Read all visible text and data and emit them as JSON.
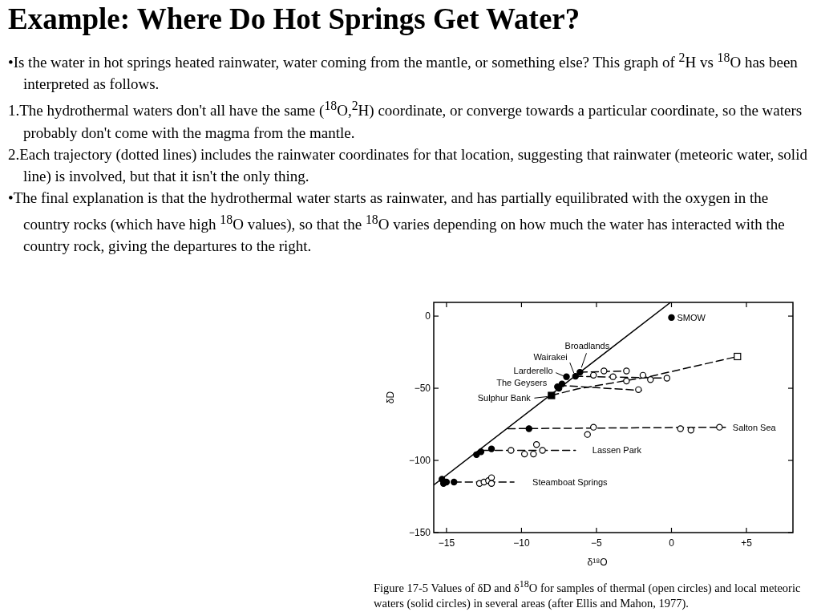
{
  "chart_data": {
    "type": "scatter",
    "title": "Example: Where Do Hot Springs Get Water?",
    "xlabel": "δ¹⁸O",
    "ylabel": "δD",
    "xlim": [
      -15.85,
      8.1
    ],
    "ylim": [
      -150,
      9.5
    ],
    "xticks": [
      -15,
      -10,
      -5,
      0,
      {
        "value": 5,
        "label": "+5"
      }
    ],
    "yticks": [
      0,
      -50,
      -100,
      -150
    ],
    "grid": false,
    "series": [
      {
        "type": "line",
        "line_style": "solid",
        "color": "#000000",
        "x": [
          -15.85,
          -0.06
        ],
        "values": [
          -117,
          9.5
        ]
      },
      {
        "type": "line",
        "line_style": "dashed",
        "color": "#000000",
        "x": [
          -6.1,
          -2.9
        ],
        "values": [
          -38.9,
          -38
        ]
      },
      {
        "type": "line",
        "line_style": "dashed",
        "color": "#000000",
        "x": [
          -6.4,
          -0.3
        ],
        "values": [
          -41.7,
          -43
        ]
      },
      {
        "type": "line",
        "line_style": "dashed",
        "color": "#000000",
        "x": [
          -7.5,
          -2.0
        ],
        "values": [
          -48,
          -51.5
        ]
      },
      {
        "type": "line",
        "line_style": "dashed",
        "color": "#000000",
        "x": [
          -8,
          -6.3,
          -1.5,
          4.4
        ],
        "values": [
          -55,
          -50.5,
          -42,
          -28
        ]
      },
      {
        "type": "line",
        "line_style": "dashed",
        "color": "#000000",
        "x": [
          -10.9,
          3.6
        ],
        "values": [
          -78,
          -77
        ]
      },
      {
        "type": "line",
        "line_style": "dashed",
        "color": "#000000",
        "x": [
          -12.5,
          -6.4
        ],
        "values": [
          -93,
          -93
        ]
      },
      {
        "type": "line",
        "line_style": "dashed",
        "color": "#000000",
        "x": [
          -14.5,
          -10.5
        ],
        "values": [
          -115,
          -115
        ]
      },
      {
        "marker": "circle",
        "color": "#000000",
        "x": [
          0,
          -6.1,
          -6.4,
          -7.0,
          -7.5,
          -7.3,
          -7.6,
          -9.5,
          -13.0,
          -12.7,
          -12.0,
          -15.3,
          -15.0,
          -14.5,
          -15.2
        ],
        "values": [
          -1,
          -38.9,
          -41.7,
          -42,
          -50,
          -47,
          -49,
          -78,
          -96,
          -94,
          -92,
          -113,
          -115,
          -115,
          -116
        ]
      },
      {
        "marker": "square",
        "color": "#000000",
        "x": [
          -8.0
        ],
        "values": [
          -55
        ]
      },
      {
        "marker": "circle",
        "color": "#ffffff",
        "x": [
          -12.8,
          -12.5,
          -12.2,
          -12.0,
          -12.0,
          -10.7,
          -9.8,
          -9.2,
          -9.0,
          -8.6,
          -5.2,
          -5.6,
          0.6,
          1.3,
          3.2,
          -4.5,
          -3.0,
          -5.2,
          -3.9,
          -3.0,
          -1.9,
          -1.4,
          -0.3,
          -2.2
        ],
        "values": [
          -116,
          -115,
          -114,
          -112,
          -116,
          -93,
          -95.6,
          -95.6,
          -89,
          -93,
          -77,
          -82,
          -78,
          -79,
          -77,
          -38,
          -38,
          -41,
          -42,
          -45,
          -41,
          -44,
          -43,
          -51
        ]
      },
      {
        "marker": "square",
        "color": "#ffffff",
        "x": [
          4.4
        ],
        "values": [
          -28
        ]
      }
    ],
    "annotations": [
      "•Is the water in hot springs heated rainwater, water coming from the mantle, or something else? This graph of $^{2}$H vs $^{18}$O has been interpreted as follows.",
      "1.The hydrothermal waters don't all have the same ($^{18}$O,$^{2}$H) coordinate, or converge towards a particular coordinate, so the waters probably don't come with the magma from the mantle.",
      "2.Each trajectory (dotted lines) includes the rainwater coordinates for that location, suggesting that rainwater (meteoric water, solid line) is involved, but that it isn't the only thing.",
      "•The final explanation is that the hydrothermal water starts as rainwater, and has partially equilibrated with the oxygen in the country rocks (which have high $^{18}$O values), so that the $^{18}$O varies depending on how much the water has interacted with the country rock, giving the departures to the right.",
      "Figure 17-5   Values of δD and δ$^{18}$O for samples of thermal (open circles) and local meteoric waters (solid circles) in several areas (after Ellis and Mahon, 1977).",
      {
        "text": "SMOW",
        "x": 0,
        "y": -1
      },
      {
        "text": "Broadlands",
        "x": -6.1,
        "y": -38.9
      },
      {
        "text": "Wairakei",
        "x": -6.4,
        "y": -41.7
      },
      {
        "text": "Larderello",
        "x": -7.0,
        "y": -42
      },
      {
        "text": "The Geysers",
        "x": -7.5,
        "y": -50
      },
      {
        "text": "Sulphur Bank",
        "x": -8.0,
        "y": -55
      },
      {
        "text": "Salton Sea",
        "x": 3.6,
        "y": -77
      },
      {
        "text": "Lassen Park",
        "x": -6.4,
        "y": -93
      },
      {
        "text": "Steamboat Springs",
        "x": -10.5,
        "y": -115
      }
    ]
  }
}
